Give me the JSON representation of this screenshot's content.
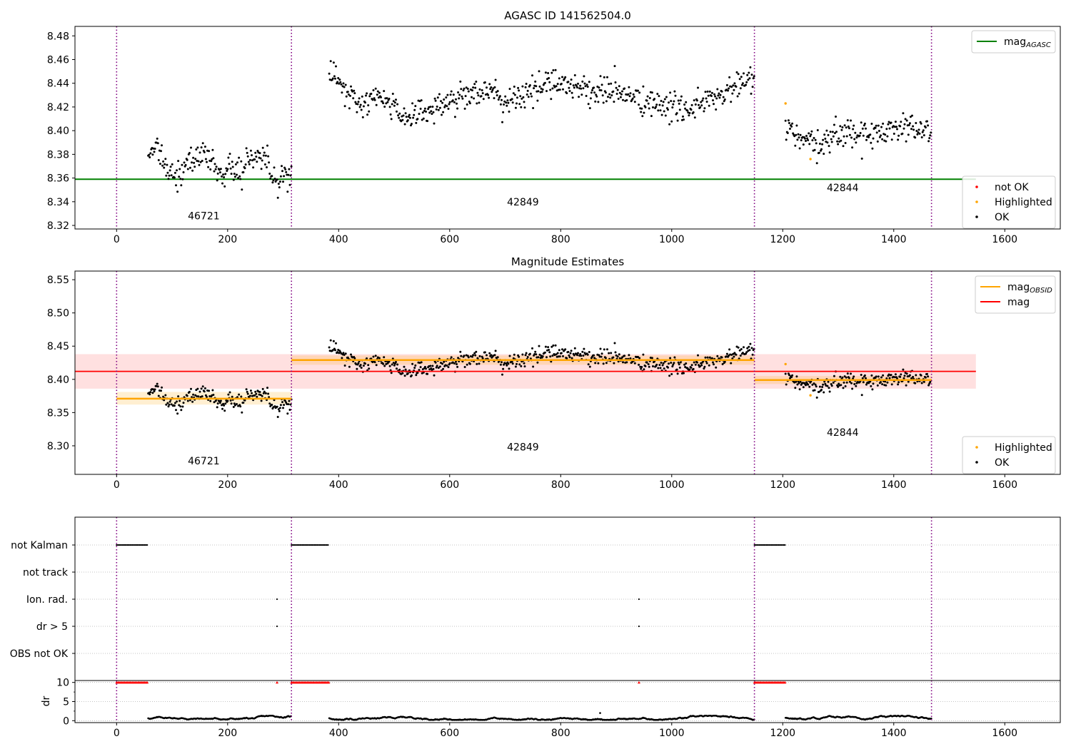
{
  "colors": {
    "ok": "#000000",
    "not_ok": "#ff0000",
    "highlighted": "#ffa500",
    "mag_agasc": "#008000",
    "mag_obsid": "#ffa500",
    "mag": "#ff0000",
    "obsid_divider": "#800080",
    "grid": "#b0b0b0"
  },
  "chart_data": [
    {
      "type": "scatter",
      "title": "AGASC ID 141562504.0",
      "xlim": [
        -75,
        1700
      ],
      "ylim": [
        8.317,
        8.488
      ],
      "x_ticks": [
        0,
        200,
        400,
        600,
        800,
        1000,
        1200,
        1400,
        1600
      ],
      "y_ticks": [
        8.32,
        8.34,
        8.36,
        8.38,
        8.4,
        8.42,
        8.44,
        8.46,
        8.48
      ],
      "obsid_boundaries": [
        0,
        315,
        1149,
        1468
      ],
      "obsid_labels": [
        {
          "obsid": "46721",
          "x": 157,
          "y": 8.325
        },
        {
          "obsid": "42849",
          "x": 732,
          "y": 8.337
        },
        {
          "obsid": "42844",
          "x": 1308,
          "y": 8.349
        }
      ],
      "lines": [
        {
          "name": "mag_AGASC",
          "y": 8.359,
          "x_range": [
            -75,
            1548
          ]
        }
      ],
      "ok_segments": [
        {
          "x_range": [
            57,
            315
          ],
          "levels": [
            8.376,
            8.39,
            8.385,
            8.365,
            8.363,
            8.36,
            8.37,
            8.375,
            8.378,
            8.38,
            8.375,
            8.368,
            8.365,
            8.37,
            8.366,
            8.365,
            8.373,
            8.378,
            8.38,
            8.375,
            8.362,
            8.36,
            8.365,
            8.365
          ]
        },
        {
          "x_range": [
            383,
            1149
          ],
          "levels": [
            8.45,
            8.438,
            8.425,
            8.422,
            8.428,
            8.425,
            8.418,
            8.412,
            8.415,
            8.418,
            8.422,
            8.425,
            8.43,
            8.435,
            8.432,
            8.428,
            8.425,
            8.428,
            8.432,
            8.438,
            8.442,
            8.44,
            8.437,
            8.435,
            8.432,
            8.435,
            8.432,
            8.428,
            8.425,
            8.422,
            8.42,
            8.418,
            8.42,
            8.422,
            8.425,
            8.43,
            8.435,
            8.44,
            8.445
          ]
        },
        {
          "x_range": [
            1205,
            1468
          ],
          "levels": [
            8.405,
            8.395,
            8.39,
            8.385,
            8.392,
            8.398,
            8.4,
            8.397,
            8.395,
            8.398,
            8.402,
            8.405,
            8.403,
            8.4,
            8.398
          ]
        }
      ],
      "highlighted_points": [
        {
          "x": 1205,
          "y": 8.423
        },
        {
          "x": 1250,
          "y": 8.376
        }
      ],
      "legend_top": [
        {
          "label": "mag$_{AGASC}$",
          "text": "mag",
          "sub": "AGASC",
          "kind": "line",
          "color": "#008000"
        }
      ],
      "legend_bottom": [
        {
          "label": "not OK",
          "kind": "point",
          "color": "#ff0000"
        },
        {
          "label": "Highlighted",
          "kind": "point",
          "color": "#ffa500"
        },
        {
          "label": "OK",
          "kind": "point",
          "color": "#000000"
        }
      ],
      "legend_placement": [
        "top-right",
        "bottom-right"
      ]
    },
    {
      "type": "scatter",
      "title": "Magnitude Estimates",
      "xlim": [
        -75,
        1700
      ],
      "ylim": [
        8.257,
        8.563
      ],
      "x_ticks": [
        0,
        200,
        400,
        600,
        800,
        1000,
        1200,
        1400,
        1600
      ],
      "y_ticks": [
        8.3,
        8.35,
        8.4,
        8.45,
        8.5,
        8.55
      ],
      "obsid_boundaries": [
        0,
        315,
        1149,
        1468
      ],
      "obsid_labels": [
        {
          "obsid": "46721",
          "x": 157,
          "y": 8.272
        },
        {
          "obsid": "42849",
          "x": 732,
          "y": 8.293
        },
        {
          "obsid": "42844",
          "x": 1308,
          "y": 8.315
        }
      ],
      "mag": {
        "value": 8.412,
        "band": [
          8.386,
          8.438
        ],
        "x_range": [
          -75,
          1548
        ]
      },
      "mag_obsid": [
        {
          "x_range": [
            0,
            315
          ],
          "value": 8.371,
          "band": [
            8.362,
            8.381
          ]
        },
        {
          "x_range": [
            315,
            1149
          ],
          "value": 8.429,
          "band": [
            8.422,
            8.436
          ]
        },
        {
          "x_range": [
            1149,
            1468
          ],
          "value": 8.399,
          "band": [
            8.393,
            8.405
          ]
        }
      ],
      "highlighted_points": [
        {
          "x": 1205,
          "y": 8.423
        },
        {
          "x": 1250,
          "y": 8.376
        }
      ],
      "legend_top": [
        {
          "label": "mag$_{OBSID}$",
          "text": "mag",
          "sub": "OBSID",
          "kind": "line",
          "color": "#ffa500"
        },
        {
          "label": "mag",
          "text": "mag",
          "sub": "",
          "kind": "line",
          "color": "#ff0000"
        }
      ],
      "legend_bottom": [
        {
          "label": "Highlighted",
          "kind": "point",
          "color": "#ffa500"
        },
        {
          "label": "OK",
          "kind": "point",
          "color": "#000000"
        }
      ],
      "legend_placement": [
        "top-right",
        "bottom-right"
      ]
    },
    {
      "type": "scatter",
      "title": "",
      "xlim": [
        -75,
        1700
      ],
      "flag_rows": [
        "not Kalman",
        "not track",
        "Ion. rad.",
        "dr > 5",
        "OBS not OK"
      ],
      "flags": {
        "not Kalman": [
          [
            0,
            57
          ],
          [
            315,
            383
          ],
          [
            1149,
            1205
          ]
        ],
        "not track": [],
        "Ion. rad.": [
          [
            289,
            289
          ],
          [
            941,
            941
          ]
        ],
        "dr > 5": [
          [
            289,
            289
          ],
          [
            941,
            941
          ]
        ],
        "OBS not OK": []
      },
      "grid": true
    },
    {
      "type": "scatter",
      "title": "",
      "xlim": [
        -75,
        1700
      ],
      "ylim": [
        -0.5,
        10.5
      ],
      "ylabel": "dr",
      "x_ticks": [
        0,
        200,
        400,
        600,
        800,
        1000,
        1200,
        1400,
        1600
      ],
      "y_ticks": [
        0,
        5,
        10
      ],
      "clipped_at": 10,
      "clipped_ranges": [
        [
          0,
          57
        ],
        [
          289,
          289
        ],
        [
          315,
          383
        ],
        [
          941,
          941
        ],
        [
          1149,
          1205
        ]
      ],
      "dr_segments": [
        [
          57,
          315
        ],
        [
          383,
          1149
        ],
        [
          1205,
          1468
        ]
      ],
      "dr_typical": [
        0.2,
        1.3
      ],
      "outliers": [
        {
          "x": 871,
          "y": 2.0
        }
      ]
    }
  ]
}
